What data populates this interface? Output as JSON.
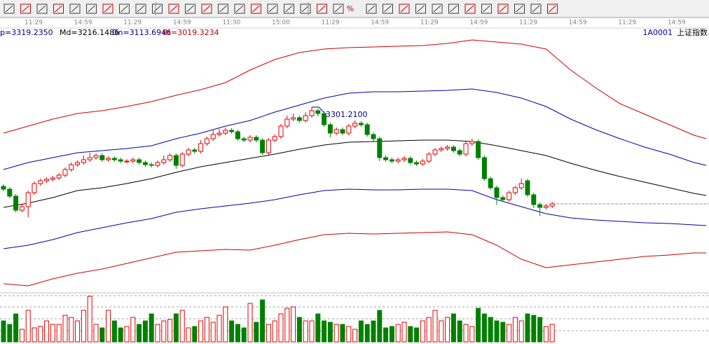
{
  "toolbar_text": "%",
  "time_labels": [
    "11:29",
    "14:59",
    "11:29",
    "14:59",
    "11:30",
    "15:00",
    "11:29",
    "14:59",
    "11:29",
    "14:59",
    "11:29",
    "14:59",
    "11:29",
    "14:59"
  ],
  "indicator_labels": [
    {
      "text": "p=3319.2350",
      "color": "#000080"
    },
    {
      "text": "Md=3216.1486",
      "color": "#000000"
    },
    {
      "text": "Dn=3113.6946",
      "color": "#000080"
    },
    {
      "text": "Bt=3019.3234",
      "color": "#c00000"
    }
  ],
  "symbol": {
    "code": "1A0001",
    "name": "上证指数"
  },
  "chart_data": {
    "type": "candlestick",
    "open": [
      3075,
      3067,
      3047,
      3007,
      3017,
      3057,
      3083,
      3091,
      3095,
      3099,
      3107,
      3123,
      3137,
      3143,
      3151,
      3157,
      3163,
      3151,
      3155,
      3151,
      3145,
      3147,
      3151,
      3143,
      3137,
      3135,
      3143,
      3151,
      3163,
      3135,
      3167,
      3179,
      3175,
      3197,
      3211,
      3223,
      3227,
      3235,
      3231,
      3211,
      3207,
      3215,
      3207,
      3171,
      3207,
      3217,
      3247,
      3267,
      3271,
      3263,
      3277,
      3291,
      3283,
      3251,
      3227,
      3237,
      3227,
      3247,
      3255,
      3251,
      3223,
      3211,
      3157,
      3151,
      3147,
      3151,
      3155,
      3143,
      3139,
      3147,
      3167,
      3179,
      3183,
      3187,
      3177,
      3167,
      3197,
      3203,
      3157,
      3097,
      3071,
      3043,
      3037,
      3057,
      3071,
      3091,
      3051,
      3023,
      3015,
      3019
    ],
    "high": [
      3081,
      3073,
      3053,
      3023,
      3063,
      3089,
      3097,
      3101,
      3105,
      3113,
      3129,
      3143,
      3149,
      3163,
      3171,
      3169,
      3169,
      3161,
      3161,
      3157,
      3153,
      3157,
      3157,
      3149,
      3143,
      3149,
      3163,
      3169,
      3169,
      3173,
      3185,
      3185,
      3207,
      3217,
      3235,
      3239,
      3243,
      3241,
      3237,
      3217,
      3221,
      3221,
      3213,
      3213,
      3223,
      3253,
      3277,
      3283,
      3277,
      3287,
      3301.21,
      3297,
      3289,
      3257,
      3243,
      3243,
      3253,
      3263,
      3261,
      3257,
      3229,
      3217,
      3163,
      3157,
      3157,
      3161,
      3161,
      3149,
      3153,
      3173,
      3185,
      3189,
      3193,
      3193,
      3183,
      3203,
      3211,
      3209,
      3163,
      3103,
      3077,
      3049,
      3063,
      3077,
      3097,
      3097,
      3057,
      3029,
      3025,
      3031
    ],
    "low": [
      3061,
      3041,
      3001,
      3001,
      2987,
      3051,
      3077,
      3085,
      3089,
      3093,
      3101,
      3117,
      3131,
      3137,
      3145,
      3151,
      3145,
      3145,
      3145,
      3141,
      3141,
      3141,
      3137,
      3131,
      3129,
      3129,
      3137,
      3145,
      3125,
      3129,
      3161,
      3169,
      3169,
      3191,
      3205,
      3217,
      3221,
      3225,
      3205,
      3201,
      3201,
      3201,
      3165,
      3165,
      3201,
      3211,
      3241,
      3261,
      3257,
      3257,
      3271,
      3275,
      3245,
      3215,
      3221,
      3221,
      3221,
      3241,
      3245,
      3217,
      3201,
      3147,
      3145,
      3141,
      3141,
      3145,
      3137,
      3133,
      3133,
      3141,
      3161,
      3173,
      3177,
      3171,
      3161,
      3161,
      3191,
      3151,
      3091,
      3065,
      3023,
      3031,
      3031,
      3051,
      3065,
      3045,
      3013,
      2991,
      3009,
      3013
    ],
    "close": [
      3067,
      3047,
      3007,
      3017,
      3057,
      3083,
      3091,
      3095,
      3099,
      3107,
      3123,
      3137,
      3143,
      3151,
      3157,
      3163,
      3151,
      3155,
      3151,
      3147,
      3147,
      3151,
      3143,
      3137,
      3135,
      3143,
      3151,
      3163,
      3135,
      3167,
      3179,
      3175,
      3197,
      3211,
      3223,
      3227,
      3235,
      3231,
      3211,
      3207,
      3215,
      3207,
      3171,
      3207,
      3217,
      3247,
      3267,
      3271,
      3263,
      3277,
      3291,
      3283,
      3251,
      3227,
      3237,
      3227,
      3247,
      3255,
      3251,
      3223,
      3211,
      3157,
      3151,
      3147,
      3151,
      3155,
      3143,
      3139,
      3147,
      3167,
      3179,
      3183,
      3187,
      3177,
      3167,
      3197,
      3203,
      3157,
      3097,
      3071,
      3043,
      3037,
      3057,
      3071,
      3083,
      3051,
      3023,
      3015,
      3019,
      3025
    ],
    "volume": [
      30,
      25,
      40,
      18,
      45,
      20,
      22,
      30,
      25,
      25,
      38,
      35,
      30,
      45,
      65,
      25,
      20,
      45,
      30,
      20,
      22,
      35,
      25,
      30,
      40,
      25,
      30,
      32,
      40,
      45,
      20,
      22,
      30,
      35,
      28,
      38,
      50,
      30,
      25,
      20,
      55,
      28,
      60,
      25,
      30,
      40,
      48,
      50,
      35,
      30,
      30,
      40,
      30,
      28,
      25,
      25,
      22,
      18,
      30,
      25,
      30,
      45,
      20,
      22,
      25,
      28,
      22,
      20,
      30,
      35,
      45,
      30,
      35,
      40,
      30,
      25,
      22,
      48,
      40,
      35,
      30,
      28,
      25,
      35,
      30,
      40,
      38,
      35,
      22,
      25
    ],
    "ylim": [
      2771,
      3527
    ],
    "volume_ylim": [
      0,
      70
    ],
    "up_color": "#e00000",
    "down_color": "#008000",
    "annotation": "3301.2100",
    "bands": [
      {
        "color": "#d00000",
        "x": [
          0,
          4,
          8,
          12,
          16,
          20,
          24,
          28,
          32,
          36,
          40,
          44,
          48,
          52,
          56,
          60,
          64,
          68,
          72,
          76,
          80,
          84,
          88,
          92,
          96,
          100,
          104,
          108,
          112,
          114
        ],
        "values": [
          3227,
          3247,
          3267,
          3283,
          3291,
          3303,
          3317,
          3335,
          3351,
          3371,
          3407,
          3437,
          3457,
          3467,
          3471,
          3473,
          3475,
          3477,
          3483,
          3493,
          3487,
          3481,
          3467,
          3407,
          3357,
          3311,
          3281,
          3251,
          3221,
          3211
        ]
      },
      {
        "color": "#0000b0",
        "x": [
          0,
          4,
          8,
          12,
          16,
          20,
          24,
          28,
          32,
          36,
          40,
          44,
          48,
          52,
          56,
          60,
          64,
          68,
          72,
          76,
          80,
          84,
          88,
          92,
          96,
          100,
          104,
          108,
          112,
          114
        ],
        "values": [
          3123,
          3143,
          3157,
          3171,
          3177,
          3183,
          3191,
          3211,
          3227,
          3247,
          3263,
          3287,
          3307,
          3327,
          3341,
          3345,
          3345,
          3347,
          3349,
          3353,
          3343,
          3327,
          3303,
          3267,
          3237,
          3211,
          3187,
          3167,
          3143,
          3135
        ]
      },
      {
        "color": "#000000",
        "x": [
          0,
          4,
          8,
          12,
          16,
          20,
          24,
          28,
          32,
          36,
          40,
          44,
          48,
          52,
          56,
          60,
          64,
          68,
          72,
          76,
          80,
          84,
          88,
          92,
          96,
          100,
          104,
          108,
          112,
          114
        ],
        "values": [
          3015,
          3027,
          3043,
          3063,
          3071,
          3083,
          3097,
          3115,
          3131,
          3143,
          3155,
          3167,
          3181,
          3193,
          3201,
          3203,
          3205,
          3207,
          3207,
          3203,
          3191,
          3177,
          3163,
          3141,
          3121,
          3103,
          3087,
          3071,
          3055,
          3049
        ]
      },
      {
        "color": "#0000b0",
        "x": [
          0,
          4,
          8,
          12,
          16,
          20,
          24,
          28,
          32,
          36,
          40,
          44,
          48,
          52,
          56,
          60,
          64,
          68,
          72,
          76,
          80,
          84,
          88,
          92,
          96,
          100,
          104,
          108,
          112,
          114
        ],
        "values": [
          2897,
          2907,
          2923,
          2943,
          2957,
          2971,
          2983,
          3001,
          3011,
          3019,
          3027,
          3037,
          3051,
          3063,
          3067,
          3065,
          3065,
          3067,
          3067,
          3063,
          3037,
          3017,
          2997,
          2985,
          2979,
          2975,
          2971,
          2969,
          2965,
          2963
        ]
      },
      {
        "color": "#d00000",
        "x": [
          0,
          4,
          8,
          12,
          16,
          20,
          24,
          28,
          32,
          36,
          40,
          44,
          48,
          52,
          56,
          60,
          64,
          68,
          72,
          76,
          80,
          84,
          88,
          92,
          96,
          100,
          104,
          108,
          112,
          114
        ],
        "values": [
          2797,
          2791,
          2811,
          2827,
          2839,
          2855,
          2871,
          2887,
          2891,
          2895,
          2893,
          2907,
          2923,
          2937,
          2941,
          2939,
          2941,
          2943,
          2945,
          2937,
          2907,
          2867,
          2843,
          2851,
          2859,
          2867,
          2875,
          2879,
          2885,
          2885
        ]
      }
    ]
  }
}
